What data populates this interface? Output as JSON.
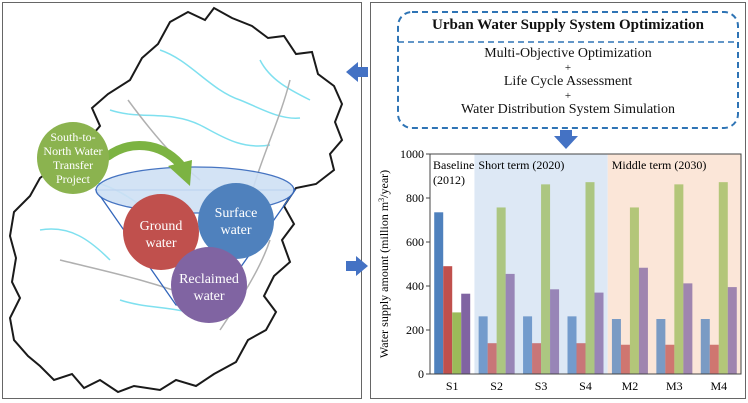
{
  "colors": {
    "map_outline": "#1a1a1a",
    "rivers": "#7fe0ef",
    "districts": "#b0b0b0",
    "transfer_circle": "#8bb34f",
    "transfer_arrow": "#7cb342",
    "ground_water": "#c0504d",
    "surface_water": "#4f81bd",
    "reclaimed_water": "#8064a2",
    "funnel": "#3366bb",
    "dashed_box": "#2e74b5",
    "nav_arrow": "#4472c4",
    "short_term_bg": "#dde8f5",
    "middle_term_bg": "#fbe6d8"
  },
  "left": {
    "transfer_label_lines": [
      "South-to-",
      "North Water",
      "Transfer",
      "Project"
    ],
    "ground_lines": [
      "Ground",
      "water"
    ],
    "surface_lines": [
      "Surface",
      "water"
    ],
    "reclaimed_lines": [
      "Reclaimed",
      "water"
    ]
  },
  "optimization_box": {
    "title": "Urban Water Supply System Optimization",
    "items": [
      "Multi-Objective Optimization",
      "Life Cycle Assessment",
      "Water Distribution System Simulation"
    ],
    "plus": "+"
  },
  "icons": [
    "left-arrow-icon",
    "right-arrow-icon",
    "down-arrow-icon"
  ],
  "chart_data": {
    "type": "bar",
    "ylabel_prefix": "Water supply amount (million m",
    "ylabel_sup": "3",
    "ylabel_suffix": "/year)",
    "ylim": [
      0,
      1000
    ],
    "yticks": [
      "0",
      "200",
      "400",
      "600",
      "800",
      "1000"
    ],
    "categories": [
      "S1",
      "S2",
      "S3",
      "S4",
      "M2",
      "M3",
      "M4"
    ],
    "periods": [
      {
        "label_lines": [
          "Baseline",
          "(2012)"
        ],
        "categories": [
          "S1"
        ]
      },
      {
        "label_lines": [
          "Short term (2020)"
        ],
        "categories": [
          "S2",
          "S3",
          "S4"
        ]
      },
      {
        "label_lines": [
          "Middle term (2030)"
        ],
        "categories": [
          "M2",
          "M3",
          "M4"
        ]
      }
    ],
    "series_colors": [
      "#4f81bd",
      "#c0504d",
      "#9bbb59",
      "#8064a2"
    ],
    "values": [
      [
        735,
        490,
        280,
        365
      ],
      [
        262,
        140,
        757,
        455
      ],
      [
        262,
        140,
        862,
        385
      ],
      [
        262,
        140,
        872,
        370
      ],
      [
        250,
        133,
        757,
        483
      ],
      [
        250,
        133,
        862,
        412
      ],
      [
        250,
        133,
        872,
        395
      ]
    ]
  }
}
